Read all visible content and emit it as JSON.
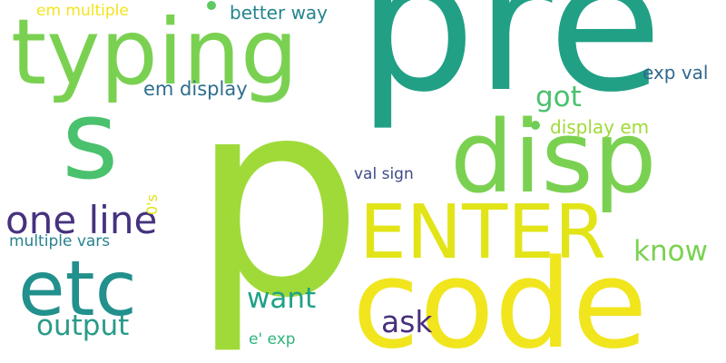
{
  "words": [
    {
      "id": "w-pre",
      "text": "pre",
      "color": "#21a085"
    },
    {
      "id": "w-p",
      "text": "p",
      "color": "#a0da39"
    },
    {
      "id": "w-typing",
      "text": "typing",
      "color": "#7ad151"
    },
    {
      "id": "w-s",
      "text": "s",
      "color": "#4ac16d"
    },
    {
      "id": "w-disp",
      "text": "disp",
      "color": "#7ad151"
    },
    {
      "id": "w-code",
      "text": "code",
      "color": "#f1e51d"
    },
    {
      "id": "w-enter",
      "text": "ENTER",
      "color": "#e2e418"
    },
    {
      "id": "w-etc",
      "text": "etc",
      "color": "#22908c"
    },
    {
      "id": "w-one-line",
      "text": "one line",
      "color": "#46327e"
    },
    {
      "id": "w-em-display",
      "text": "em display",
      "color": "#2e6e8e"
    },
    {
      "id": "w-got",
      "text": "got",
      "color": "#4ac16d"
    },
    {
      "id": "w-exp-val",
      "text": "exp val",
      "color": "#31688e"
    },
    {
      "id": "w-display-em",
      "text": "display em",
      "color": "#a0da39"
    },
    {
      "id": "w-better-way",
      "text": "better way",
      "color": "#25858e"
    },
    {
      "id": "w-em-multiple",
      "text": "em multiple",
      "color": "#f1e51d"
    },
    {
      "id": "w-know",
      "text": "know",
      "color": "#7ad151"
    },
    {
      "id": "w-want",
      "text": "want",
      "color": "#1fa187"
    },
    {
      "id": "w-ask",
      "text": "ask",
      "color": "#472f7d"
    },
    {
      "id": "w-output",
      "text": "output",
      "color": "#2a9a89"
    },
    {
      "id": "w-e-exp",
      "text": "e' exp",
      "color": "#2fb47c"
    },
    {
      "id": "w-val-sign",
      "text": "val sign",
      "color": "#3e4a89"
    },
    {
      "id": "w-multiple-vars",
      "text": "multiple vars",
      "color": "#26828e"
    },
    {
      "id": "w-0-s",
      "text": "0's",
      "color": "#dfe318",
      "vertical": true
    }
  ],
  "dots": [
    {
      "id": "dot-1",
      "color": "#5ec962"
    },
    {
      "id": "dot-2",
      "color": "#6ece58"
    }
  ]
}
